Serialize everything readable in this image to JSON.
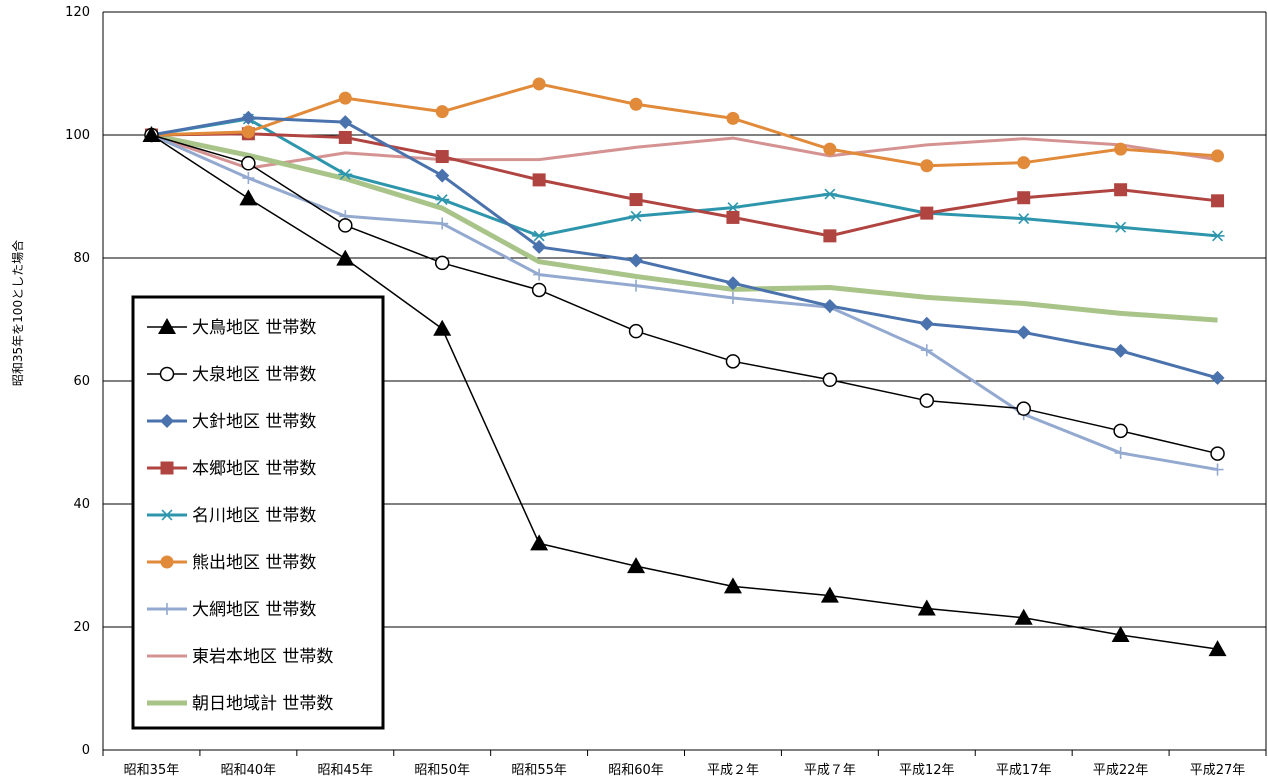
{
  "chart_data": {
    "type": "line",
    "title": "",
    "xlabel": "",
    "ylabel": "昭和35年を100とした場合",
    "ylim": [
      0,
      120
    ],
    "yticks": [
      0,
      20,
      40,
      60,
      80,
      100,
      120
    ],
    "grid": true,
    "legend_position": "left",
    "categories": [
      "昭和35年",
      "昭和40年",
      "昭和45年",
      "昭和50年",
      "昭和55年",
      "昭和60年",
      "平成２年",
      "平成７年",
      "平成12年",
      "平成17年",
      "平成22年",
      "平成27年"
    ],
    "series": [
      {
        "name": "大鳥地区 世帯数",
        "color": "#000000",
        "marker": "triangle-filled",
        "values": [
          100,
          89.7,
          79.9,
          68.5,
          33.6,
          29.9,
          26.6,
          25.1,
          23.0,
          21.5,
          18.7,
          16.4
        ]
      },
      {
        "name": "大泉地区 世帯数",
        "color": "#000000",
        "marker": "circle-open",
        "values": [
          100,
          95.4,
          85.3,
          79.2,
          74.8,
          68.1,
          63.2,
          60.2,
          56.8,
          55.5,
          51.9,
          48.2
        ]
      },
      {
        "name": "大針地区 世帯数",
        "color": "#4a72ac",
        "marker": "diamond",
        "values": [
          100,
          102.8,
          102.1,
          93.4,
          81.8,
          79.6,
          75.9,
          72.2,
          69.3,
          67.9,
          64.9,
          60.5
        ]
      },
      {
        "name": "本郷地区 世帯数",
        "color": "#b04441",
        "marker": "square",
        "values": [
          100,
          100.2,
          99.6,
          96.5,
          92.7,
          89.5,
          86.6,
          83.6,
          87.3,
          89.8,
          91.1,
          89.3
        ]
      },
      {
        "name": "名川地区 世帯数",
        "color": "#2e96ac",
        "marker": "star",
        "values": [
          100,
          102.6,
          93.6,
          89.5,
          83.6,
          86.8,
          88.2,
          90.4,
          87.3,
          86.4,
          85.0,
          83.6
        ]
      },
      {
        "name": "熊出地区 世帯数",
        "color": "#e08a3a",
        "marker": "circle-filled",
        "values": [
          100,
          100.5,
          106.0,
          103.8,
          108.3,
          105.0,
          102.7,
          97.7,
          95.0,
          95.5,
          97.7,
          96.6
        ]
      },
      {
        "name": "大網地区 世帯数",
        "color": "#93a9cf",
        "marker": "plus",
        "values": [
          100,
          93.0,
          86.8,
          85.6,
          77.3,
          75.5,
          73.5,
          72.0,
          65.0,
          54.6,
          48.3,
          45.6
        ]
      },
      {
        "name": "東岩本地区 世帯数",
        "color": "#d49392",
        "marker": "none",
        "values": [
          100,
          94.6,
          97.1,
          96.0,
          96.0,
          98.0,
          99.5,
          96.6,
          98.4,
          99.4,
          98.4,
          96.0
        ]
      },
      {
        "name": "朝日地域計 世帯数",
        "color": "#a9c489",
        "marker": "none",
        "thick": true,
        "values": [
          100,
          96.7,
          92.9,
          88.1,
          79.4,
          77.0,
          74.9,
          75.2,
          73.6,
          72.6,
          71.0,
          69.9
        ]
      }
    ]
  }
}
